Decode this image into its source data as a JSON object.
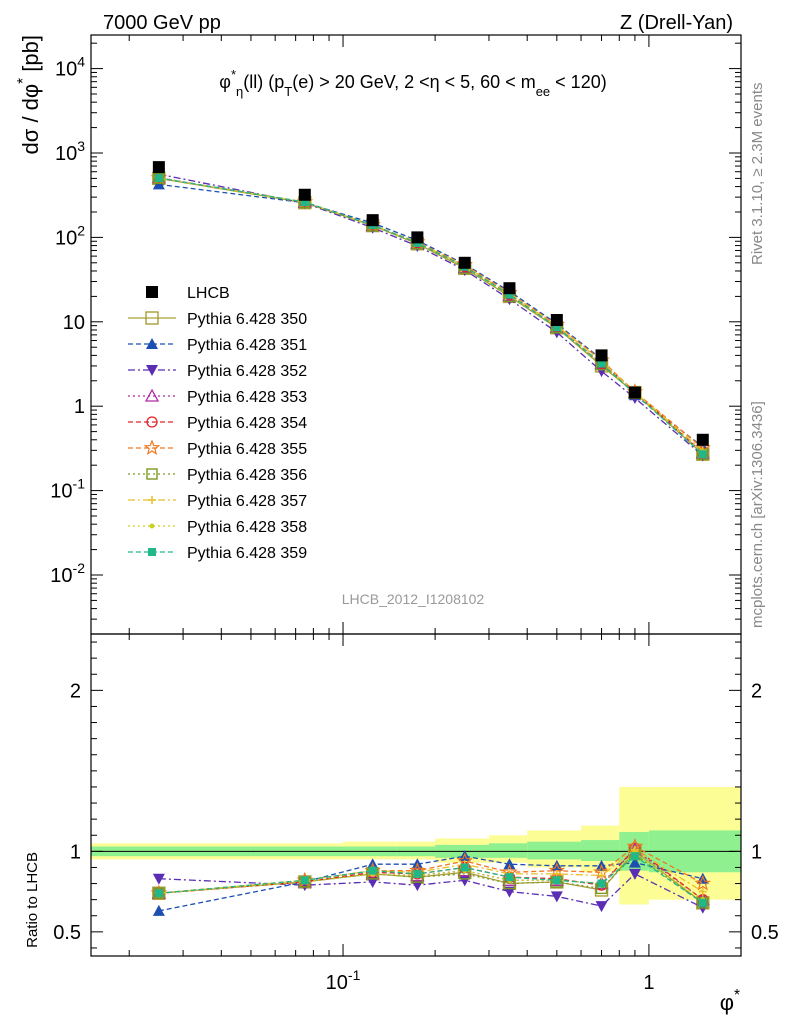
{
  "header": {
    "left": "7000 GeV pp",
    "right": "Z (Drell-Yan)"
  },
  "side_text": {
    "rivet": "Rivet 3.1.10, ≥ 2.3M events",
    "mcplots": "mcplots.cern.ch [arXiv:1306.3436]"
  },
  "chart_data": [
    {
      "type": "scatter",
      "title": "φ*_η(ll) (p_T(e) > 20 GeV, 2 <η < 5, 60 < m_ee < 120)",
      "watermark": "LHCB_2012_I1208102",
      "xlabel": "φ*",
      "ylabel": "dσ / dφ* [pb]",
      "xscale": "log",
      "yscale": "log",
      "xlim": [
        0.015,
        2.0
      ],
      "ylim": [
        0.002,
        25000
      ],
      "x": [
        0.025,
        0.075,
        0.125,
        0.175,
        0.25,
        0.35,
        0.5,
        0.7,
        0.9,
        1.5
      ],
      "legend_position": "middle-left",
      "y_tick_labels": [
        "10^{-2}",
        "10^{-1}",
        "1",
        "10",
        "10^{2}",
        "10^{3}",
        "10^{4}"
      ],
      "series": [
        {
          "name": "LHCB",
          "color": "#000000",
          "marker": "square-filled",
          "line": "none",
          "values": [
            680,
            320,
            160,
            100,
            50,
            25,
            10.5,
            4.0,
            1.45,
            0.4
          ]
        },
        {
          "name": "Pythia 6.428 350",
          "color": "#a9a03a",
          "marker": "square-open",
          "line": "solid",
          "values": [
            500,
            258,
            138,
            84,
            43,
            20,
            8.5,
            3.0,
            1.45,
            0.27
          ]
        },
        {
          "name": "Pythia 6.428 351",
          "color": "#1c4fb0",
          "marker": "triangle-up-filled",
          "line": "dashed",
          "values": [
            425,
            258,
            148,
            92,
            48,
            23,
            9.5,
            3.6,
            1.35,
            0.33
          ]
        },
        {
          "name": "Pythia 6.428 352",
          "color": "#5a2db4",
          "marker": "triangle-down-filled",
          "line": "dashdot",
          "values": [
            560,
            255,
            130,
            79,
            41,
            18.5,
            7.5,
            2.6,
            1.25,
            0.26
          ]
        },
        {
          "name": "Pythia 6.428 353",
          "color": "#b02aa0",
          "marker": "triangle-up-open",
          "line": "dotted",
          "values": [
            510,
            260,
            138,
            85,
            44,
            20.5,
            8.6,
            3.2,
            1.45,
            0.28
          ]
        },
        {
          "name": "Pythia 6.428 354",
          "color": "#e0242a",
          "marker": "circle-open",
          "line": "dashed",
          "values": [
            505,
            260,
            139,
            86,
            45,
            21,
            8.7,
            3.2,
            1.47,
            0.28
          ]
        },
        {
          "name": "Pythia 6.428 355",
          "color": "#f07820",
          "marker": "star-open",
          "line": "dashed",
          "values": [
            505,
            262,
            140,
            88,
            47,
            22,
            9.2,
            3.5,
            1.48,
            0.32
          ]
        },
        {
          "name": "Pythia 6.428 356",
          "color": "#7a9a20",
          "marker": "square-open-small",
          "line": "dotted",
          "values": [
            502,
            258,
            137,
            84,
            43,
            20,
            8.5,
            3.1,
            1.42,
            0.27
          ]
        },
        {
          "name": "Pythia 6.428 357",
          "color": "#e8c02a",
          "marker": "dash-cross",
          "line": "dashdot",
          "values": [
            505,
            262,
            140,
            87,
            46,
            21.5,
            9.0,
            3.4,
            1.46,
            0.3
          ]
        },
        {
          "name": "Pythia 6.428 358",
          "color": "#c8d020",
          "marker": "dot",
          "line": "dotted",
          "values": [
            503,
            260,
            138,
            85,
            44,
            20.5,
            8.6,
            3.2,
            1.43,
            0.28
          ]
        },
        {
          "name": "Pythia 6.428 359",
          "color": "#20b888",
          "marker": "square-filled-small",
          "line": "dashed",
          "values": [
            505,
            262,
            140,
            86,
            45,
            21,
            8.6,
            3.2,
            1.4,
            0.27
          ]
        }
      ]
    },
    {
      "type": "line",
      "ylabel": "Ratio to LHCB",
      "xlabel": "φ*",
      "xscale": "log",
      "xlim": [
        0.015,
        2.0
      ],
      "ylim": [
        0.35,
        2.35
      ],
      "y_ticks": [
        0.5,
        1,
        2
      ],
      "x_tick_labels": [
        "10^{-1}",
        "1"
      ],
      "x_bin_edges": [
        0.015,
        0.05,
        0.1,
        0.15,
        0.2,
        0.3,
        0.4,
        0.6,
        0.8,
        1.0,
        2.0
      ],
      "uncertainty_bands": {
        "inner_color": "#8ef08e",
        "outer_color": "#fdfd96",
        "inner": [
          [
            0.97,
            1.03
          ],
          [
            0.97,
            1.03
          ],
          [
            0.97,
            1.03
          ],
          [
            0.97,
            1.03
          ],
          [
            0.96,
            1.04
          ],
          [
            0.96,
            1.05
          ],
          [
            0.95,
            1.06
          ],
          [
            0.94,
            1.07
          ],
          [
            0.88,
            1.12
          ],
          [
            0.87,
            1.13
          ]
        ],
        "outer": [
          [
            0.95,
            1.05
          ],
          [
            0.95,
            1.05
          ],
          [
            0.95,
            1.06
          ],
          [
            0.95,
            1.06
          ],
          [
            0.93,
            1.08
          ],
          [
            0.93,
            1.1
          ],
          [
            0.9,
            1.13
          ],
          [
            0.87,
            1.16
          ],
          [
            0.67,
            1.4
          ],
          [
            0.7,
            1.4
          ]
        ]
      },
      "series": [
        {
          "name": "Pythia 6.428 350",
          "values": [
            0.74,
            0.81,
            0.86,
            0.84,
            0.87,
            0.8,
            0.81,
            0.76,
            1.0,
            0.68
          ]
        },
        {
          "name": "Pythia 6.428 351",
          "values": [
            0.63,
            0.81,
            0.92,
            0.92,
            0.97,
            0.92,
            0.91,
            0.91,
            0.93,
            0.83
          ]
        },
        {
          "name": "Pythia 6.428 352",
          "values": [
            0.83,
            0.79,
            0.81,
            0.79,
            0.82,
            0.75,
            0.72,
            0.66,
            0.86,
            0.65
          ]
        },
        {
          "name": "Pythia 6.428 353",
          "values": [
            0.74,
            0.81,
            0.86,
            0.85,
            0.88,
            0.82,
            0.82,
            0.8,
            1.01,
            0.7
          ]
        },
        {
          "name": "Pythia 6.428 354",
          "values": [
            0.74,
            0.81,
            0.87,
            0.86,
            0.9,
            0.84,
            0.83,
            0.79,
            1.02,
            0.7
          ]
        },
        {
          "name": "Pythia 6.428 355",
          "values": [
            0.74,
            0.82,
            0.88,
            0.88,
            0.94,
            0.87,
            0.88,
            0.87,
            1.03,
            0.8
          ]
        },
        {
          "name": "Pythia 6.428 356",
          "values": [
            0.74,
            0.81,
            0.86,
            0.84,
            0.86,
            0.8,
            0.81,
            0.77,
            0.98,
            0.68
          ]
        },
        {
          "name": "Pythia 6.428 357",
          "values": [
            0.74,
            0.82,
            0.88,
            0.87,
            0.92,
            0.86,
            0.86,
            0.85,
            1.01,
            0.75
          ]
        },
        {
          "name": "Pythia 6.428 358",
          "values": [
            0.74,
            0.81,
            0.86,
            0.85,
            0.88,
            0.82,
            0.82,
            0.8,
            0.99,
            0.7
          ]
        },
        {
          "name": "Pythia 6.428 359",
          "values": [
            0.74,
            0.82,
            0.88,
            0.86,
            0.9,
            0.84,
            0.82,
            0.8,
            0.97,
            0.68
          ]
        }
      ]
    }
  ]
}
